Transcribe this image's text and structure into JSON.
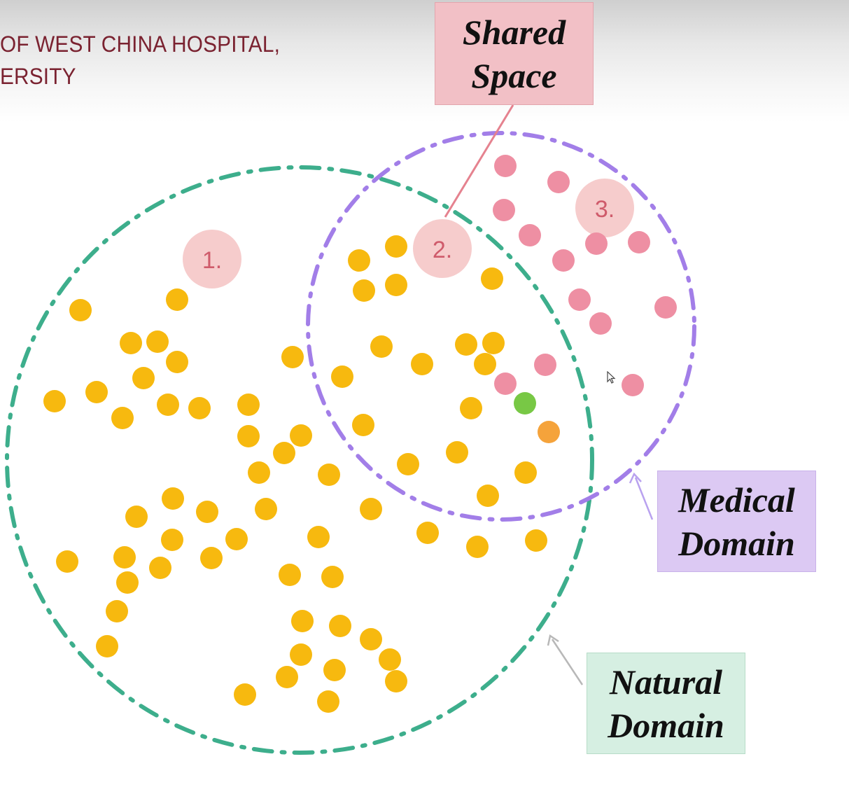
{
  "header": {
    "line1": "OF WEST CHINA HOSPITAL,",
    "line2": "ERSITY"
  },
  "callouts": {
    "shared_space": {
      "line1": "Shared",
      "line2": "Space"
    },
    "medical_domain": {
      "line1": "Medical",
      "line2": "Domain"
    },
    "natural_domain": {
      "line1": "Natural",
      "line2": "Domain"
    }
  },
  "region_markers": {
    "one": "1.",
    "two": "2.",
    "three": "3."
  },
  "colors": {
    "natural_circle": "#3dae8c",
    "medical_circle": "#a27ee8",
    "natural_dot": "#f7b90f",
    "medical_dot": "#ee8fa3",
    "highlight_green": "#78c845",
    "highlight_orange": "#f5a33b",
    "marker_fill": "#f6cccc",
    "marker_text": "#cf5b6b",
    "shared_line": "#e5828f",
    "header_text": "#7a2230"
  }
}
